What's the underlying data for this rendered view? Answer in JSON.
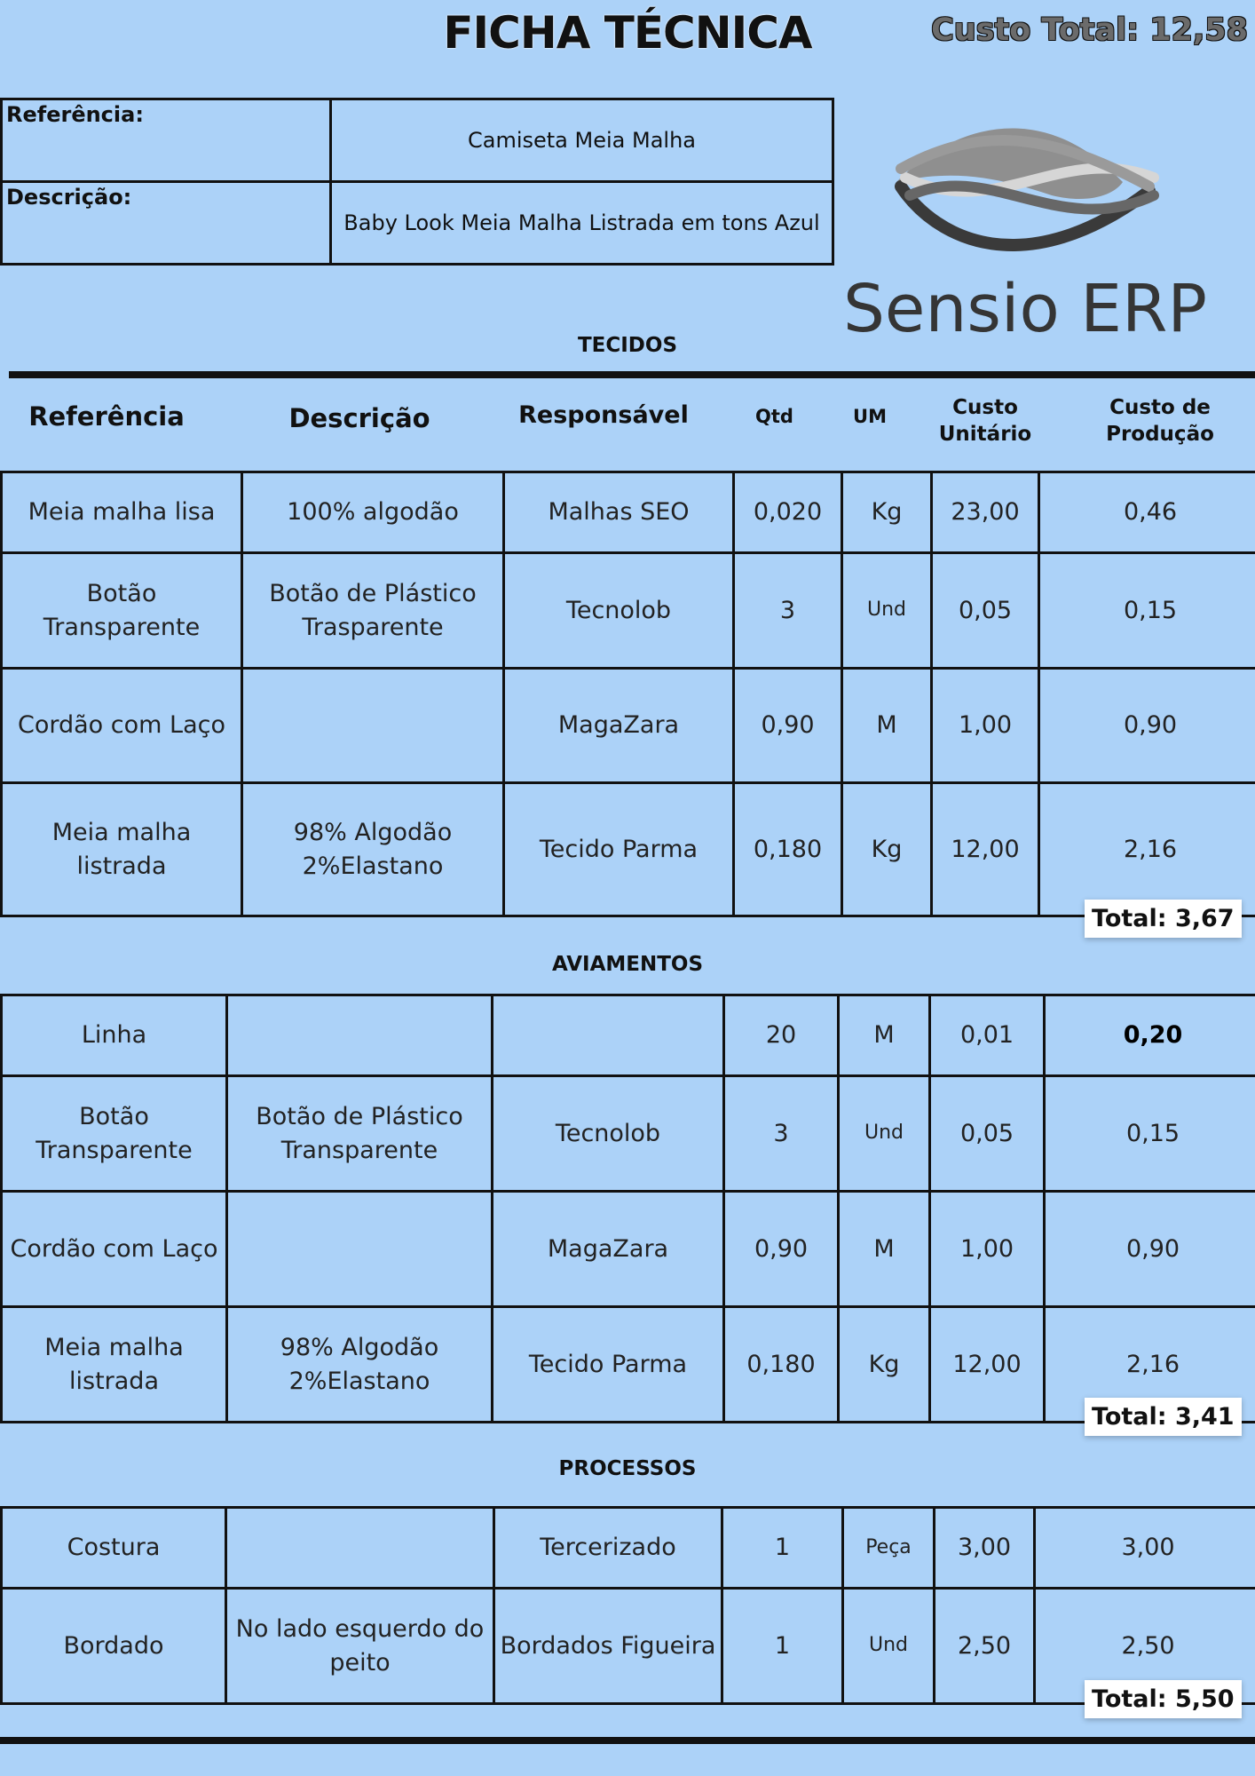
{
  "header": {
    "title": "FICHA TÉCNICA",
    "total_cost": "Custo Total: 12,58"
  },
  "info": {
    "reference_label": "Referência:",
    "reference_value": "Camiseta Meia Malha",
    "description_label": "Descrição:",
    "description_value": "Baby Look Meia Malha Listrada em tons Azul"
  },
  "logo": {
    "text": "Sensio ERP",
    "icon": "wave-logo-icon"
  },
  "columns": {
    "referencia": "Referência",
    "descricao": "Descrição",
    "responsavel": "Responsável",
    "qtd": "Qtd",
    "um": "UM",
    "custo_unitario_1": "Custo",
    "custo_unitario_2": "Unitário",
    "custo_producao_1": "Custo de",
    "custo_producao_2": "Produção"
  },
  "sections": {
    "tecidos": {
      "title": "TECIDOS",
      "total": "Total: 3,67",
      "rows": [
        [
          "Meia malha lisa",
          "100% algodão",
          "Malhas SEO",
          "0,020",
          "Kg",
          "23,00",
          "0,46"
        ],
        [
          "Botão Transparente",
          "Botão de Plástico Trasparente",
          "Tecnolob",
          "3",
          "Und",
          "0,05",
          "0,15"
        ],
        [
          "Cordão com Laço",
          "",
          "MagaZara",
          "0,90",
          "M",
          "1,00",
          "0,90"
        ],
        [
          "Meia malha listrada",
          "98% Algodão 2%Elastano",
          "Tecido Parma",
          "0,180",
          "Kg",
          "12,00",
          "2,16"
        ]
      ]
    },
    "aviamentos": {
      "title": "AVIAMENTOS",
      "total": "Total: 3,41",
      "rows": [
        [
          "Linha",
          "",
          "",
          "20",
          "M",
          "0,01",
          "0,20"
        ],
        [
          "Botão Transparente",
          "Botão de Plástico Transparente",
          "Tecnolob",
          "3",
          "Und",
          "0,05",
          "0,15"
        ],
        [
          "Cordão com Laço",
          "",
          "MagaZara",
          "0,90",
          "M",
          "1,00",
          "0,90"
        ],
        [
          "Meia malha listrada",
          "98% Algodão 2%Elastano",
          "Tecido Parma",
          "0,180",
          "Kg",
          "12,00",
          "2,16"
        ]
      ]
    },
    "processos": {
      "title": "PROCESSOS",
      "total": "Total: 5,50",
      "rows": [
        [
          "Costura",
          "",
          "Tercerizado",
          "1",
          "Peça",
          "3,00",
          "3,00"
        ],
        [
          "Bordado",
          "No lado esquerdo do peito",
          "Bordados Figueira",
          "1",
          "Und",
          "2,50",
          "2,50"
        ]
      ]
    }
  }
}
